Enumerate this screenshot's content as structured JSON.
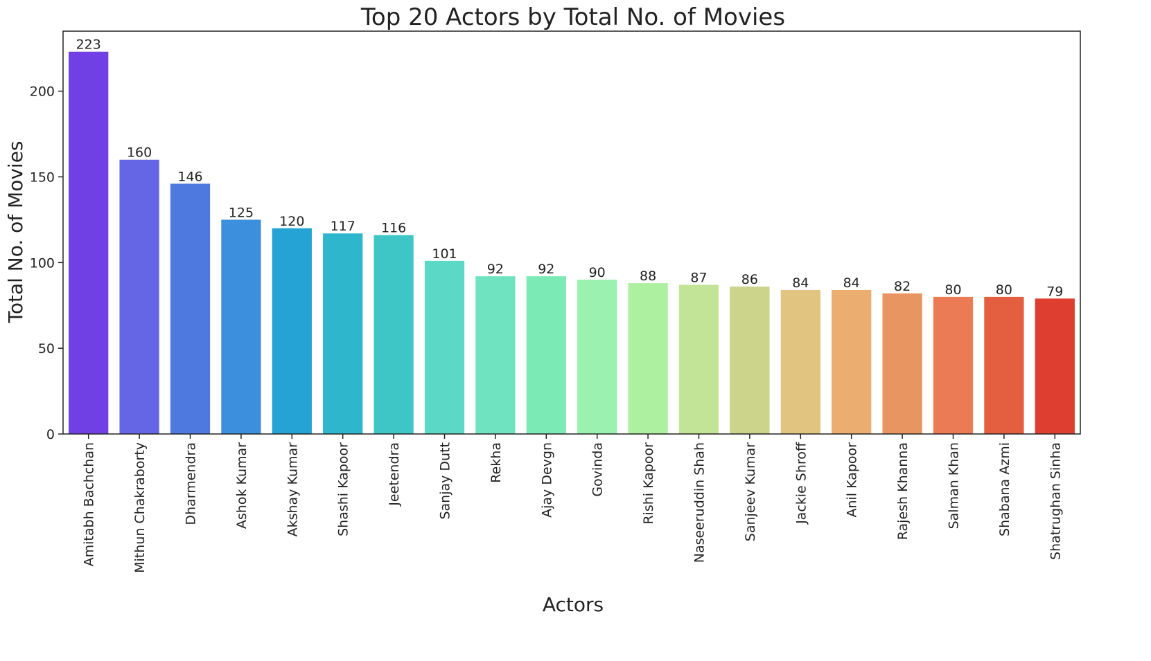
{
  "chart_data": {
    "type": "bar",
    "title": "Top 20 Actors by Total No. of Movies",
    "xlabel": "Actors",
    "ylabel": "Total No. of Movies",
    "ylim": [
      0,
      235
    ],
    "yticks": [
      0,
      50,
      100,
      150,
      200
    ],
    "grid": false,
    "legend": "none",
    "categories": [
      "Amitabh Bachchan",
      "Mithun Chakraborty",
      "Dharmendra",
      "Ashok Kumar",
      "Akshay Kumar",
      "Shashi Kapoor",
      "Jeetendra",
      "Sanjay Dutt",
      "Rekha",
      "Ajay Devgn",
      "Govinda",
      "Rishi Kapoor",
      "Naseeruddin Shah",
      "Sanjeev Kumar",
      "Jackie Shroff",
      "Anil Kapoor",
      "Rajesh Khanna",
      "Salman Khan",
      "Shabana Azmi",
      "Shatrughan Sinha"
    ],
    "values": [
      223,
      160,
      146,
      125,
      120,
      117,
      116,
      101,
      92,
      92,
      90,
      88,
      87,
      86,
      84,
      84,
      82,
      80,
      80,
      79
    ],
    "data_labels": [
      "223",
      "160",
      "146",
      "125",
      "120",
      "117",
      "116",
      "101",
      "92",
      "92",
      "90",
      "88",
      "87",
      "86",
      "84",
      "84",
      "82",
      "80",
      "80",
      "79"
    ],
    "colors": [
      "#7040e4",
      "#6466e6",
      "#4e7ae0",
      "#3b8fdc",
      "#24a3d4",
      "#2db6cc",
      "#3ec6c6",
      "#5bd8c6",
      "#6fe3c0",
      "#7ceab4",
      "#9bf2b0",
      "#adf0a0",
      "#c2e496",
      "#ccd38a",
      "#e1c47f",
      "#ebad70",
      "#e89561",
      "#ea7b55",
      "#e45e40",
      "#de3e2f"
    ]
  }
}
